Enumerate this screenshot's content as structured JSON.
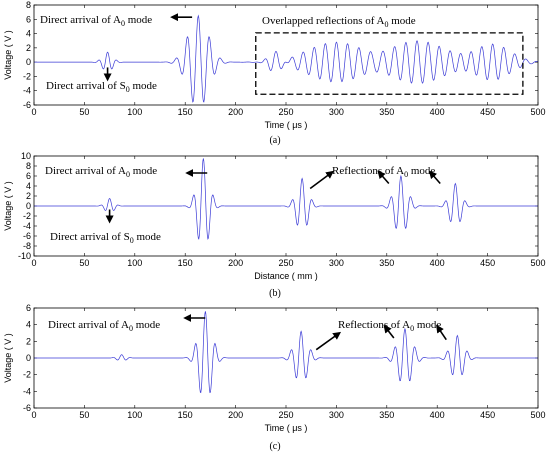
{
  "chart_data": [
    {
      "type": "line",
      "panel_label": "(a)",
      "xlabel": "Time ( μs )",
      "ylabel": "Voltage ( V )",
      "xlim": [
        0,
        500
      ],
      "ylim": [
        -6,
        8
      ],
      "xticks": [
        0,
        50,
        100,
        150,
        200,
        250,
        300,
        350,
        400,
        450,
        500
      ],
      "yticks": [
        -6,
        -4,
        -2,
        0,
        2,
        4,
        6,
        8
      ],
      "grid": false,
      "series": [
        {
          "color": "#3b3bd6",
          "wave_packets": [
            {
              "center": 73,
              "amplitude": 1.4,
              "period": 9,
              "width": 7
            },
            {
              "center": 163,
              "amplitude": 6.5,
              "period": 11,
              "width": 14
            },
            {
              "center": 240,
              "amplitude": 1.8,
              "period": 11,
              "width": 10
            },
            {
              "center": 300,
              "amplitude": 2.8,
              "period": 11,
              "width": 40
            },
            {
              "center": 380,
              "amplitude": 3.0,
              "period": 11,
              "width": 40
            },
            {
              "center": 455,
              "amplitude": 2.5,
              "period": 11,
              "width": 25
            }
          ]
        }
      ],
      "annotations": [
        {
          "text": "Direct arrival of A",
          "sub": "0",
          "tail": " mode",
          "arrow_target_x": 137,
          "arrow_target_y": 6.3
        },
        {
          "text": "Direct arrival of S",
          "sub": "0",
          "tail": " mode",
          "arrow_target_x": 73,
          "arrow_target_y": -2.0
        },
        {
          "text": "Overlapped reflections of A",
          "sub": "0",
          "tail": " mode"
        }
      ],
      "highlight_box": {
        "x": [
          220,
          485
        ],
        "y": [
          -4.5,
          4.1
        ]
      }
    },
    {
      "type": "line",
      "panel_label": "(b)",
      "xlabel": "Distance ( mm )",
      "ylabel": "Voltage ( V )",
      "xlim": [
        0,
        500
      ],
      "ylim": [
        -10,
        10
      ],
      "xticks": [
        0,
        50,
        100,
        150,
        200,
        250,
        300,
        350,
        400,
        450,
        500
      ],
      "yticks": [
        -10,
        -8,
        -6,
        -4,
        -2,
        0,
        2,
        4,
        6,
        8,
        10
      ],
      "grid": false,
      "series": [
        {
          "color": "#3b3bd6",
          "wave_packets": [
            {
              "center": 75,
              "amplitude": 1.5,
              "period": 9,
              "width": 6
            },
            {
              "center": 168,
              "amplitude": 9.5,
              "period": 10,
              "width": 8
            },
            {
              "center": 266,
              "amplitude": 5.5,
              "period": 10,
              "width": 8
            },
            {
              "center": 364,
              "amplitude": 6.0,
              "period": 10,
              "width": 9
            },
            {
              "center": 418,
              "amplitude": 4.5,
              "period": 10,
              "width": 8
            }
          ]
        }
      ],
      "annotations": [
        {
          "text": "Direct arrival of A",
          "sub": "0",
          "tail": " mode",
          "arrow_target_x": 152,
          "arrow_target_y": 6.6
        },
        {
          "text": "Direct arrival of S",
          "sub": "0",
          "tail": " mode",
          "arrow_target_x": 75,
          "arrow_target_y": -2.5
        },
        {
          "text": "Reflections of A",
          "sub": "0",
          "tail": " mode"
        }
      ],
      "reflection_arrows": [
        {
          "from": [
            274,
            3.5
          ],
          "to": [
            296,
            6.8
          ]
        },
        {
          "from": [
            352,
            4.5
          ],
          "to": [
            342,
            6.8
          ]
        },
        {
          "from": [
            403,
            4.5
          ],
          "to": [
            393,
            6.8
          ]
        }
      ]
    },
    {
      "type": "line",
      "panel_label": "(c)",
      "xlabel": "Time ( μs )",
      "ylabel": "Voltage ( V )",
      "xlim": [
        0,
        500
      ],
      "ylim": [
        -6,
        6
      ],
      "xticks": [
        0,
        50,
        100,
        150,
        200,
        250,
        300,
        350,
        400,
        450,
        500
      ],
      "yticks": [
        -6,
        -4,
        -2,
        0,
        2,
        4,
        6
      ],
      "grid": false,
      "series": [
        {
          "color": "#3b3bd6",
          "wave_packets": [
            {
              "center": 87,
              "amplitude": 0.4,
              "period": 9,
              "width": 6
            },
            {
              "center": 170,
              "amplitude": 5.6,
              "period": 10,
              "width": 9
            },
            {
              "center": 265,
              "amplitude": 3.2,
              "period": 10,
              "width": 9
            },
            {
              "center": 368,
              "amplitude": 3.5,
              "period": 10,
              "width": 10
            },
            {
              "center": 420,
              "amplitude": 2.7,
              "period": 10,
              "width": 9
            }
          ]
        }
      ],
      "annotations": [
        {
          "text": "Direct arrival of A",
          "sub": "0",
          "tail": " mode",
          "arrow_target_x": 150,
          "arrow_target_y": 4.8
        },
        {
          "text": "Reflections of A",
          "sub": "0",
          "tail": " mode"
        }
      ],
      "reflection_arrows": [
        {
          "from": [
            280,
            1.0
          ],
          "to": [
            303,
            3.0
          ]
        },
        {
          "from": [
            357,
            2.4
          ],
          "to": [
            348,
            3.8
          ]
        },
        {
          "from": [
            409,
            2.2
          ],
          "to": [
            400,
            3.8
          ]
        }
      ]
    }
  ]
}
